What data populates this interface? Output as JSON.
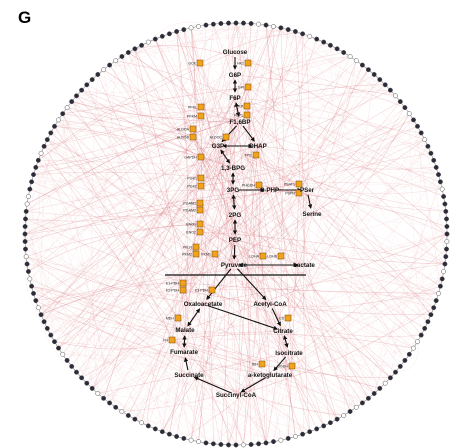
{
  "panel_label": "G",
  "colors": {
    "edge_red": "#c8404a",
    "edge_faint": "#e8a0a8",
    "gene_box": "#f2a31c",
    "node_dark": "#2b2b3a",
    "node_light": "#ffffff",
    "circle": "#555555"
  },
  "metabolites": [
    {
      "id": "glucose",
      "label": "Glucose"
    },
    {
      "id": "g6p",
      "label": "G6P"
    },
    {
      "id": "f6p",
      "label": "F6P"
    },
    {
      "id": "f16bp",
      "label": "F1,6BP"
    },
    {
      "id": "g3p",
      "label": "G3P"
    },
    {
      "id": "dhap",
      "label": "DHAP"
    },
    {
      "id": "bpg13",
      "label": "1,3-BPG"
    },
    {
      "id": "pg3",
      "label": "3PG"
    },
    {
      "id": "php3",
      "label": "3-PHP"
    },
    {
      "id": "pser",
      "label": "PSer"
    },
    {
      "id": "serine",
      "label": "Serine"
    },
    {
      "id": "pg2",
      "label": "2PG"
    },
    {
      "id": "pep",
      "label": "PEP"
    },
    {
      "id": "pyruvate",
      "label": "Pyruvate"
    },
    {
      "id": "lactate",
      "label": "Lactate"
    },
    {
      "id": "oaa",
      "label": "Oxaloacetate"
    },
    {
      "id": "acoa",
      "label": "Acetyl-CoA"
    },
    {
      "id": "malate",
      "label": "Malate"
    },
    {
      "id": "citrate",
      "label": "Citrate"
    },
    {
      "id": "fumarate",
      "label": "Fumarate"
    },
    {
      "id": "isocitrate",
      "label": "Isocitrate"
    },
    {
      "id": "succinate",
      "label": "Succinate"
    },
    {
      "id": "akg",
      "label": "a-ketoglutarate"
    },
    {
      "id": "succoa",
      "label": "Succinyl-CoA"
    }
  ],
  "enzymes": [
    {
      "id": "gck",
      "label": "GCK"
    },
    {
      "id": "hk1",
      "label": "HK1"
    },
    {
      "id": "gpi",
      "label": "GPI"
    },
    {
      "id": "pfkl",
      "label": "PFKL"
    },
    {
      "id": "pfkp",
      "label": "PFKP"
    },
    {
      "id": "pfkm",
      "label": "PFKM"
    },
    {
      "id": "fbp1",
      "label": "FBP1"
    },
    {
      "id": "aldoa",
      "label": "ALDOA"
    },
    {
      "id": "aldob",
      "label": "ALDOB"
    },
    {
      "id": "aldoc",
      "label": "ALDOC"
    },
    {
      "id": "tpi1",
      "label": "TPI1"
    },
    {
      "id": "gapdh",
      "label": "GAPDH"
    },
    {
      "id": "pgk1",
      "label": "PGK1"
    },
    {
      "id": "pgk2",
      "label": "PGK2"
    },
    {
      "id": "phgdh",
      "label": "PHGDH"
    },
    {
      "id": "psat1",
      "label": "PSAT1"
    },
    {
      "id": "psph",
      "label": "PSPH"
    },
    {
      "id": "pgam1",
      "label": "PGAM1"
    },
    {
      "id": "pgam2",
      "label": "PGAM2"
    },
    {
      "id": "eno1",
      "label": "ENO1"
    },
    {
      "id": "eno2",
      "label": "ENO2"
    },
    {
      "id": "pklr",
      "label": "PKLR"
    },
    {
      "id": "pkm2",
      "label": "PKM2"
    },
    {
      "id": "pkm1",
      "label": "PKM1"
    },
    {
      "id": "ldha",
      "label": "LDHA"
    },
    {
      "id": "ldhb",
      "label": "LDHB"
    },
    {
      "id": "pc",
      "label": "E1-PDH"
    },
    {
      "id": "pdh2",
      "label": "E2-PDH"
    },
    {
      "id": "pdh3",
      "label": "E3-PDH"
    },
    {
      "id": "mdh",
      "label": "MDH"
    },
    {
      "id": "cs",
      "label": "CS"
    },
    {
      "id": "fh",
      "label": "FH"
    },
    {
      "id": "idh",
      "label": "IDH"
    },
    {
      "id": "ogdh",
      "label": "OGDH"
    }
  ]
}
